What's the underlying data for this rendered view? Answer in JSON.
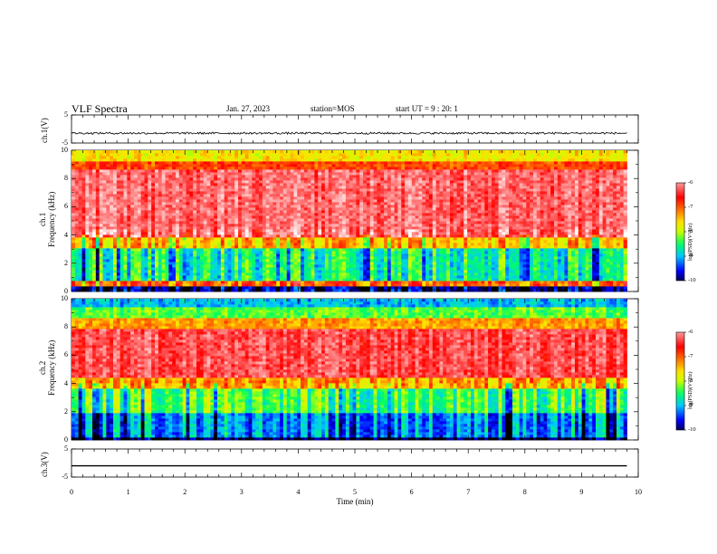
{
  "header": {
    "title": "VLF Spectra",
    "date": "Jan. 27, 2023",
    "station": "station=MOS",
    "start": "start  UT =   9 : 20: 1"
  },
  "colors": {
    "accent": "#000000",
    "colormap": [
      "#000000",
      "#0000ff",
      "#00c8ff",
      "#00ff60",
      "#c8ff00",
      "#ffe000",
      "#ff7000",
      "#ff0000",
      "#ffffff"
    ]
  },
  "chart_data": [
    {
      "type": "line",
      "panel": "ch1-waveform",
      "ylabel": "ch.1(V)",
      "ylim": [
        -5,
        5
      ],
      "yticks": [
        "5",
        "-5"
      ],
      "x": [
        0,
        10
      ],
      "y": [
        -1.5,
        -1.5
      ],
      "note_values": "noisy waveform near -1.5 V"
    },
    {
      "type": "heatmap",
      "panel": "ch1-spectrogram",
      "ylabel": "ch.1\nFrequency (kHz)",
      "ylim": [
        0,
        10
      ],
      "yticks": [
        "0",
        "2",
        "4",
        "6",
        "8",
        "10"
      ],
      "xlim": [
        0,
        9.8
      ],
      "colorbar": {
        "label": "log(PSD)(V²/Hz)",
        "range": [
          -10,
          -6
        ],
        "ticks": [
          "-6",
          "-7",
          "-8",
          "-9",
          "-10"
        ]
      },
      "bands_kHz": [
        {
          "from": 0.0,
          "to": 0.3,
          "level": -9.8
        },
        {
          "from": 0.3,
          "to": 0.7,
          "level": -6.9
        },
        {
          "from": 0.7,
          "to": 3.0,
          "level": -8.6
        },
        {
          "from": 3.0,
          "to": 3.8,
          "level": -7.4
        },
        {
          "from": 3.8,
          "to": 8.7,
          "level": -6.2
        },
        {
          "from": 8.7,
          "to": 9.2,
          "level": -6.9
        },
        {
          "from": 9.2,
          "to": 10.0,
          "level": -7.7
        }
      ]
    },
    {
      "type": "heatmap",
      "panel": "ch2-spectrogram",
      "ylabel": "ch.2\nFrequency (kHz)",
      "ylim": [
        0,
        10
      ],
      "yticks": [
        "0",
        "2",
        "4",
        "6",
        "8",
        "10"
      ],
      "xlim": [
        0,
        9.8
      ],
      "colorbar": {
        "label": "log(PSD)(V²/Hz)",
        "range": [
          -10,
          -6
        ],
        "ticks": [
          "-6",
          "-7",
          "-8",
          "-9",
          "-10"
        ]
      },
      "bands_kHz": [
        {
          "from": 0.0,
          "to": 0.15,
          "level": -10.0
        },
        {
          "from": 0.15,
          "to": 2.0,
          "level": -9.1
        },
        {
          "from": 2.0,
          "to": 3.6,
          "level": -8.3
        },
        {
          "from": 3.6,
          "to": 4.4,
          "level": -7.3
        },
        {
          "from": 4.4,
          "to": 7.8,
          "level": -6.3
        },
        {
          "from": 7.8,
          "to": 8.6,
          "level": -7.3
        },
        {
          "from": 8.6,
          "to": 9.4,
          "level": -8.3
        },
        {
          "from": 9.4,
          "to": 10.0,
          "level": -9.0
        }
      ]
    },
    {
      "type": "line",
      "panel": "ch3-waveform",
      "ylabel": "ch.3(V)",
      "ylim": [
        -5,
        5
      ],
      "yticks": [
        "5",
        "-5"
      ],
      "x": [
        0,
        9.8
      ],
      "y": [
        -1.0,
        -1.0
      ]
    }
  ],
  "xaxis": {
    "label": "Time (min)",
    "range": [
      0,
      10
    ],
    "ticks": [
      "0",
      "1",
      "2",
      "3",
      "4",
      "5",
      "6",
      "7",
      "8",
      "9",
      "10"
    ]
  }
}
